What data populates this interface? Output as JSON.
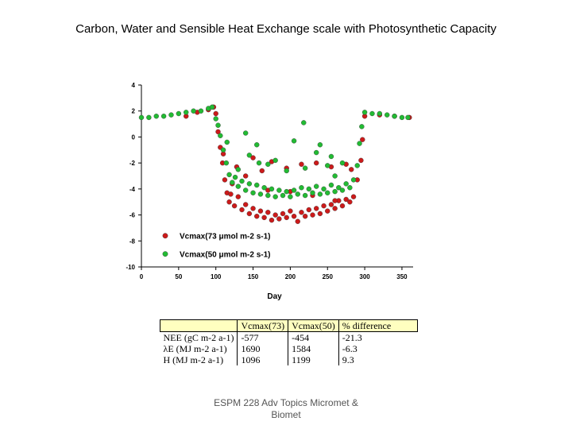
{
  "title": "Carbon, Water and Sensible Heat Exchange scale with Photosynthetic Capacity",
  "footer": "ESPM 228 Adv Topics Micromet & Biomet",
  "chart_data": {
    "type": "scatter",
    "xlabel": "Day",
    "ylabel": "",
    "xlim": [
      0,
      365
    ],
    "ylim": [
      -10,
      4
    ],
    "xticks": [
      0,
      50,
      100,
      150,
      200,
      250,
      300,
      350
    ],
    "yticks": [
      4,
      2,
      0,
      -2,
      -4,
      -6,
      -8,
      -10
    ],
    "grid": false,
    "legend_position": "bottom-left",
    "series": [
      {
        "name": "Vcmax(73 μmol m-2 s-1)",
        "color": "#cc1a1a",
        "points": [
          [
            60,
            1.6
          ],
          [
            75,
            1.9
          ],
          [
            90,
            2.1
          ],
          [
            97,
            2.3
          ],
          [
            100,
            1.8
          ],
          [
            103,
            0.4
          ],
          [
            106,
            -0.8
          ],
          [
            109,
            -2.0
          ],
          [
            112,
            -3.3
          ],
          [
            115,
            -4.3
          ],
          [
            118,
            -5.0
          ],
          [
            122,
            -3.6
          ],
          [
            125,
            -5.3
          ],
          [
            130,
            -4.6
          ],
          [
            135,
            -5.6
          ],
          [
            140,
            -5.2
          ],
          [
            145,
            -5.9
          ],
          [
            150,
            -5.5
          ],
          [
            155,
            -6.1
          ],
          [
            160,
            -5.7
          ],
          [
            165,
            -6.2
          ],
          [
            170,
            -5.8
          ],
          [
            175,
            -6.4
          ],
          [
            180,
            -6.0
          ],
          [
            185,
            -6.3
          ],
          [
            190,
            -5.9
          ],
          [
            195,
            -6.2
          ],
          [
            200,
            -5.7
          ],
          [
            205,
            -6.1
          ],
          [
            210,
            -6.5
          ],
          [
            215,
            -5.8
          ],
          [
            220,
            -6.1
          ],
          [
            225,
            -5.6
          ],
          [
            230,
            -6.0
          ],
          [
            235,
            -5.5
          ],
          [
            240,
            -5.9
          ],
          [
            245,
            -5.3
          ],
          [
            250,
            -5.7
          ],
          [
            255,
            -5.2
          ],
          [
            260,
            -5.5
          ],
          [
            265,
            -4.9
          ],
          [
            270,
            -5.3
          ],
          [
            275,
            -4.8
          ],
          [
            280,
            -5.0
          ],
          [
            285,
            -4.6
          ],
          [
            290,
            -3.3
          ],
          [
            295,
            -1.8
          ],
          [
            297,
            -0.2
          ],
          [
            300,
            1.6
          ],
          [
            320,
            1.7
          ],
          [
            340,
            1.6
          ],
          [
            360,
            1.5
          ],
          [
            110,
            -1.3
          ],
          [
            128,
            -2.3
          ],
          [
            150,
            -1.6
          ],
          [
            162,
            -2.6
          ],
          [
            175,
            -1.9
          ],
          [
            195,
            -2.4
          ],
          [
            215,
            -2.1
          ],
          [
            235,
            -2.0
          ],
          [
            255,
            -2.3
          ],
          [
            275,
            -2.1
          ],
          [
            282,
            -2.5
          ],
          [
            140,
            -3.0
          ],
          [
            200,
            -4.2
          ],
          [
            230,
            -4.5
          ],
          [
            260,
            -4.9
          ],
          [
            170,
            -4.1
          ],
          [
            120,
            -4.4
          ]
        ]
      },
      {
        "name": "Vcmax(50 μmol m-2 s-1)",
        "color": "#22bb33",
        "points": [
          [
            0,
            1.5
          ],
          [
            10,
            1.5
          ],
          [
            20,
            1.6
          ],
          [
            30,
            1.6
          ],
          [
            40,
            1.7
          ],
          [
            50,
            1.8
          ],
          [
            60,
            1.9
          ],
          [
            70,
            2.0
          ],
          [
            80,
            2.0
          ],
          [
            90,
            2.2
          ],
          [
            95,
            2.3
          ],
          [
            100,
            1.4
          ],
          [
            103,
            0.9
          ],
          [
            106,
            0.1
          ],
          [
            110,
            -1.0
          ],
          [
            114,
            -2.0
          ],
          [
            118,
            -2.9
          ],
          [
            122,
            -3.5
          ],
          [
            126,
            -3.1
          ],
          [
            130,
            -3.8
          ],
          [
            135,
            -3.4
          ],
          [
            140,
            -4.1
          ],
          [
            145,
            -3.6
          ],
          [
            150,
            -4.3
          ],
          [
            155,
            -3.7
          ],
          [
            160,
            -4.4
          ],
          [
            165,
            -3.9
          ],
          [
            170,
            -4.5
          ],
          [
            175,
            -4.0
          ],
          [
            180,
            -4.6
          ],
          [
            185,
            -4.1
          ],
          [
            190,
            -4.5
          ],
          [
            195,
            -4.2
          ],
          [
            200,
            -4.6
          ],
          [
            205,
            -4.1
          ],
          [
            210,
            -4.4
          ],
          [
            215,
            -3.9
          ],
          [
            220,
            -4.5
          ],
          [
            225,
            -4.0
          ],
          [
            230,
            -4.3
          ],
          [
            235,
            -3.8
          ],
          [
            240,
            -4.4
          ],
          [
            245,
            -4.0
          ],
          [
            250,
            -4.3
          ],
          [
            255,
            -3.7
          ],
          [
            260,
            -4.2
          ],
          [
            265,
            -3.9
          ],
          [
            270,
            -4.1
          ],
          [
            275,
            -3.6
          ],
          [
            280,
            -3.9
          ],
          [
            285,
            -3.3
          ],
          [
            290,
            -2.2
          ],
          [
            293,
            -0.5
          ],
          [
            296,
            0.8
          ],
          [
            300,
            1.9
          ],
          [
            310,
            1.8
          ],
          [
            320,
            1.8
          ],
          [
            330,
            1.7
          ],
          [
            340,
            1.6
          ],
          [
            350,
            1.5
          ],
          [
            358,
            1.5
          ],
          [
            115,
            -0.4
          ],
          [
            130,
            -2.5
          ],
          [
            145,
            -1.4
          ],
          [
            155,
            -0.6
          ],
          [
            158,
            -2.0
          ],
          [
            170,
            -2.1
          ],
          [
            180,
            -1.8
          ],
          [
            195,
            -2.6
          ],
          [
            218,
            1.1
          ],
          [
            220,
            -2.4
          ],
          [
            235,
            -1.2
          ],
          [
            240,
            -0.6
          ],
          [
            250,
            -2.2
          ],
          [
            255,
            -1.5
          ],
          [
            260,
            -3.0
          ],
          [
            270,
            -2.0
          ],
          [
            140,
            0.3
          ],
          [
            205,
            -0.3
          ]
        ]
      }
    ]
  },
  "table": {
    "headers": [
      "",
      "Vcmax(73)",
      "Vcmax(50)",
      "% difference"
    ],
    "rows": [
      [
        "NEE (gC m-2 a-1)",
        "-577",
        "-454",
        "-21.3"
      ],
      [
        "λE (MJ m-2 a-1)",
        "1690",
        "1584",
        "-6.3"
      ],
      [
        "H (MJ m-2 a-1)",
        "1096",
        "1199",
        "9.3"
      ]
    ]
  }
}
